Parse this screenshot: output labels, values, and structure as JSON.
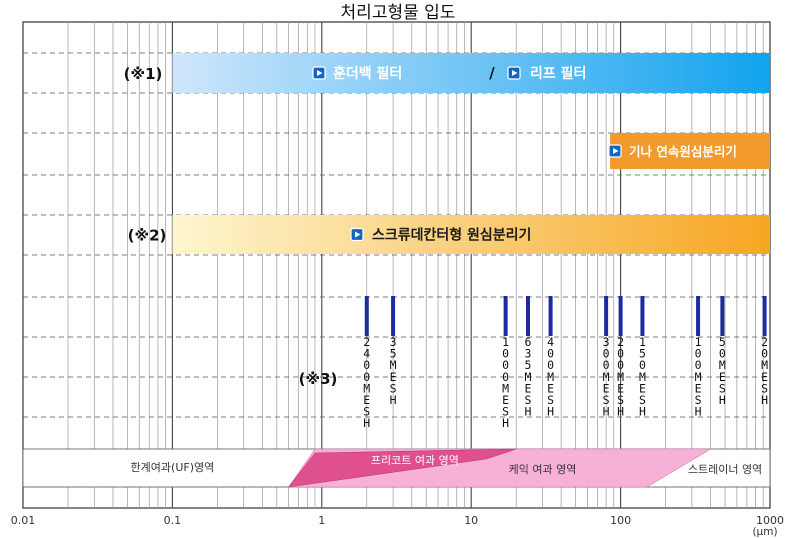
{
  "chart_data": {
    "type": "range-band",
    "title": "처리고형물 입도",
    "axis": {
      "scale": "log",
      "range": [
        0.01,
        1000
      ],
      "tick_labels": [
        "0.01",
        "0.1",
        "1",
        "10",
        "100",
        "1000"
      ],
      "tick_values": [
        0.01,
        0.1,
        1,
        10,
        100,
        1000
      ],
      "unit": "(μm)",
      "grid": true
    },
    "bands": [
      {
        "note": "(※1)",
        "range": [
          0.1,
          1000
        ],
        "labels": [
          "훈더백 필터",
          "리프 필터"
        ],
        "separator": "/",
        "color_start": "#cfe6fb",
        "color_end": "#12a3ee",
        "text_color": "#ffffff"
      },
      {
        "note": "",
        "range": [
          85,
          1000
        ],
        "labels": [
          "기나  연속원심분리기"
        ],
        "color_start": "#f29a2e",
        "color_end": "#f29a2e",
        "text_color": "#ffffff"
      },
      {
        "note": "(※2)",
        "range": [
          0.1,
          1000
        ],
        "labels": [
          "스크류데칸터형 원심분리기"
        ],
        "color_start": "#fdf6cf",
        "color_end": "#f7a623",
        "text_color": "#1a1a1a"
      }
    ],
    "mesh_note": "(※3)",
    "mesh_sizes": [
      {
        "label": "2400MESH",
        "um": 2
      },
      {
        "label": "35MESH",
        "um": 3
      },
      {
        "label": "1000MESH",
        "um": 17
      },
      {
        "label": "635MESH",
        "um": 24
      },
      {
        "label": "400MESH",
        "um": 34
      },
      {
        "label": "300MESH",
        "um": 80
      },
      {
        "label": "200MESH",
        "um": 100
      },
      {
        "label": "150MESH",
        "um": 140
      },
      {
        "label": "100MESH",
        "um": 330
      },
      {
        "label": "50MESH",
        "um": 480
      },
      {
        "label": "20MESH",
        "um": 920
      }
    ],
    "filtration_regions": [
      {
        "label": "한계여과(UF)영역",
        "range": [
          0.01,
          1
        ],
        "color": "#ffffff",
        "text_color": "#333333"
      },
      {
        "label": "프리코트 여과 영역",
        "range": [
          0.6,
          20
        ],
        "color": "#e0508f",
        "text_color": "#ffffff"
      },
      {
        "label": "케익 여과 영역",
        "range": [
          0.9,
          400
        ],
        "color": "#f7b0d6",
        "text_color": "#333333"
      },
      {
        "label": "스트레이너 영역",
        "range": [
          150,
          1000
        ],
        "color": "#ffffff",
        "text_color": "#333333"
      }
    ],
    "colors": {
      "grid_major": "#444444",
      "grid_minor": "#9a9a9a",
      "mesh_bar": "#1f2aa0",
      "play_icon": "#1565c0"
    }
  }
}
